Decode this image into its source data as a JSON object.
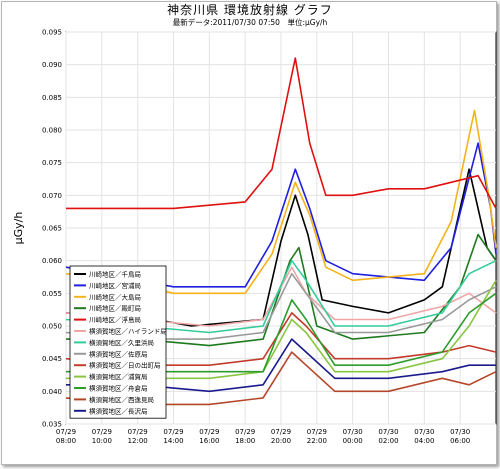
{
  "chart_data": {
    "type": "line",
    "title": "神奈川県 環境放射線 グラフ",
    "subtitle": "最新データ:2011/07/30 07:50　単位:μGy/h",
    "ylabel": "μGy/h",
    "xlabel": "",
    "ylim": [
      0.035,
      0.095
    ],
    "yticks": [
      "0.035",
      "0.040",
      "0.045",
      "0.050",
      "0.055",
      "0.060",
      "0.065",
      "0.070",
      "0.075",
      "0.080",
      "0.085",
      "0.090",
      "0.095"
    ],
    "xticks": [
      {
        "t": 0,
        "date": "07/29",
        "time": "08:00"
      },
      {
        "t": 2,
        "date": "07/29",
        "time": "10:00"
      },
      {
        "t": 4,
        "date": "07/29",
        "time": "12:00"
      },
      {
        "t": 6,
        "date": "07/29",
        "time": "14:00"
      },
      {
        "t": 8,
        "date": "07/29",
        "time": "16:00"
      },
      {
        "t": 10,
        "date": "07/29",
        "time": "18:00"
      },
      {
        "t": 12,
        "date": "07/29",
        "time": "20:00"
      },
      {
        "t": 14,
        "date": "07/29",
        "time": "22:00"
      },
      {
        "t": 16,
        "date": "07/30",
        "time": "00:00"
      },
      {
        "t": 18,
        "date": "07/30",
        "time": "02:00"
      },
      {
        "t": 20,
        "date": "07/30",
        "time": "04:00"
      },
      {
        "t": 22,
        "date": "07/30",
        "time": "06:00"
      }
    ],
    "grid": true,
    "legend_position": "left-middle",
    "series": [
      {
        "name": "川崎地区／千鳥局",
        "color": "#000000",
        "points": [
          [
            0,
            0.052
          ],
          [
            5,
            0.051
          ],
          [
            7,
            0.05
          ],
          [
            11,
            0.051
          ],
          [
            12,
            0.063
          ],
          [
            12.8,
            0.07
          ],
          [
            13.5,
            0.064
          ],
          [
            14.3,
            0.054
          ],
          [
            16,
            0.053
          ],
          [
            18,
            0.052
          ],
          [
            20,
            0.054
          ],
          [
            21,
            0.056
          ],
          [
            22.5,
            0.074
          ],
          [
            23.5,
            0.062
          ],
          [
            24,
            0.06
          ]
        ]
      },
      {
        "name": "川崎地区／宮浦局",
        "color": "#1f1fe0",
        "points": [
          [
            0,
            0.059
          ],
          [
            2,
            0.058
          ],
          [
            4,
            0.057
          ],
          [
            6,
            0.056
          ],
          [
            10,
            0.056
          ],
          [
            11.5,
            0.063
          ],
          [
            12.8,
            0.074
          ],
          [
            13.6,
            0.068
          ],
          [
            14.5,
            0.06
          ],
          [
            16,
            0.058
          ],
          [
            20,
            0.057
          ],
          [
            21.5,
            0.062
          ],
          [
            23,
            0.078
          ],
          [
            23.7,
            0.068
          ],
          [
            24,
            0.061
          ]
        ]
      },
      {
        "name": "川崎地区／大島局",
        "color": "#f5b21b",
        "points": [
          [
            0,
            0.058
          ],
          [
            3,
            0.057
          ],
          [
            6,
            0.055
          ],
          [
            10,
            0.055
          ],
          [
            11.5,
            0.061
          ],
          [
            12.8,
            0.072
          ],
          [
            13.6,
            0.067
          ],
          [
            14.5,
            0.059
          ],
          [
            16,
            0.057
          ],
          [
            20,
            0.058
          ],
          [
            21.5,
            0.066
          ],
          [
            22.8,
            0.083
          ],
          [
            23.6,
            0.07
          ],
          [
            24,
            0.062
          ]
        ]
      },
      {
        "name": "川崎地区／殿町局",
        "color": "#1f7a1f",
        "points": [
          [
            0,
            0.048
          ],
          [
            4,
            0.048
          ],
          [
            8,
            0.047
          ],
          [
            11,
            0.048
          ],
          [
            12.5,
            0.06
          ],
          [
            13,
            0.062
          ],
          [
            14,
            0.05
          ],
          [
            16,
            0.048
          ],
          [
            20,
            0.049
          ],
          [
            22,
            0.056
          ],
          [
            23,
            0.064
          ],
          [
            24,
            0.06
          ]
        ]
      },
      {
        "name": "川崎地区／浮島局",
        "color": "#e01010",
        "points": [
          [
            0,
            0.068
          ],
          [
            3,
            0.068
          ],
          [
            6,
            0.068
          ],
          [
            10,
            0.069
          ],
          [
            11.5,
            0.074
          ],
          [
            12.8,
            0.091
          ],
          [
            13.6,
            0.078
          ],
          [
            14.5,
            0.07
          ],
          [
            16,
            0.07
          ],
          [
            18,
            0.071
          ],
          [
            20,
            0.071
          ],
          [
            21.5,
            0.072
          ],
          [
            23,
            0.073
          ],
          [
            24,
            0.068
          ]
        ]
      },
      {
        "name": "横須賀地区／ハイランド局",
        "color": "#f0a6a6",
        "points": [
          [
            0,
            0.052
          ],
          [
            4,
            0.051
          ],
          [
            8,
            0.05
          ],
          [
            11,
            0.051
          ],
          [
            12.6,
            0.059
          ],
          [
            13.4,
            0.055
          ],
          [
            15,
            0.051
          ],
          [
            18,
            0.051
          ],
          [
            21,
            0.053
          ],
          [
            22.5,
            0.055
          ],
          [
            24,
            0.052
          ]
        ]
      },
      {
        "name": "横須賀地区／久里浜局",
        "color": "#33cc99",
        "points": [
          [
            0,
            0.051
          ],
          [
            4,
            0.05
          ],
          [
            8,
            0.049
          ],
          [
            11,
            0.05
          ],
          [
            12.6,
            0.06
          ],
          [
            13.4,
            0.057
          ],
          [
            15,
            0.05
          ],
          [
            18,
            0.05
          ],
          [
            21,
            0.052
          ],
          [
            22.5,
            0.058
          ],
          [
            24,
            0.06
          ]
        ]
      },
      {
        "name": "横須賀地区／佐原局",
        "color": "#999999",
        "points": [
          [
            0,
            0.049
          ],
          [
            4,
            0.048
          ],
          [
            8,
            0.048
          ],
          [
            11,
            0.049
          ],
          [
            12.6,
            0.058
          ],
          [
            13.4,
            0.055
          ],
          [
            15,
            0.049
          ],
          [
            18,
            0.049
          ],
          [
            21,
            0.051
          ],
          [
            22.5,
            0.054
          ],
          [
            24,
            0.056
          ]
        ]
      },
      {
        "name": "横須賀地区／日の出町局",
        "color": "#c43b2b",
        "points": [
          [
            0,
            0.045
          ],
          [
            4,
            0.044
          ],
          [
            8,
            0.044
          ],
          [
            11,
            0.045
          ],
          [
            12.6,
            0.052
          ],
          [
            13.4,
            0.05
          ],
          [
            15,
            0.045
          ],
          [
            18,
            0.045
          ],
          [
            21,
            0.046
          ],
          [
            22.5,
            0.047
          ],
          [
            24,
            0.046
          ]
        ]
      },
      {
        "name": "横須賀地区／浦賀局",
        "color": "#88c540",
        "points": [
          [
            0,
            0.042
          ],
          [
            4,
            0.042
          ],
          [
            8,
            0.042
          ],
          [
            11,
            0.043
          ],
          [
            12.6,
            0.051
          ],
          [
            13.4,
            0.049
          ],
          [
            15,
            0.043
          ],
          [
            18,
            0.043
          ],
          [
            21,
            0.045
          ],
          [
            22.5,
            0.05
          ],
          [
            24,
            0.057
          ]
        ]
      },
      {
        "name": "横須賀地区／舟倉局",
        "color": "#2c9c2c",
        "points": [
          [
            0,
            0.043
          ],
          [
            4,
            0.043
          ],
          [
            8,
            0.043
          ],
          [
            11,
            0.043
          ],
          [
            12.6,
            0.054
          ],
          [
            13.4,
            0.051
          ],
          [
            15,
            0.044
          ],
          [
            18,
            0.044
          ],
          [
            21,
            0.046
          ],
          [
            22.5,
            0.052
          ],
          [
            24,
            0.055
          ]
        ]
      },
      {
        "name": "横須賀地区／西逸見局",
        "color": "#b5462a",
        "points": [
          [
            0,
            0.039
          ],
          [
            4,
            0.038
          ],
          [
            8,
            0.038
          ],
          [
            11,
            0.039
          ],
          [
            12.6,
            0.046
          ],
          [
            13.4,
            0.044
          ],
          [
            15,
            0.04
          ],
          [
            18,
            0.04
          ],
          [
            21,
            0.042
          ],
          [
            22.5,
            0.041
          ],
          [
            24,
            0.043
          ]
        ]
      },
      {
        "name": "横須賀地区／長沢局",
        "color": "#1a1a8f",
        "points": [
          [
            0,
            0.041
          ],
          [
            4,
            0.041
          ],
          [
            8,
            0.04
          ],
          [
            11,
            0.041
          ],
          [
            12.6,
            0.048
          ],
          [
            13.4,
            0.046
          ],
          [
            15,
            0.042
          ],
          [
            18,
            0.042
          ],
          [
            21,
            0.043
          ],
          [
            22.5,
            0.044
          ],
          [
            24,
            0.044
          ]
        ]
      }
    ]
  }
}
